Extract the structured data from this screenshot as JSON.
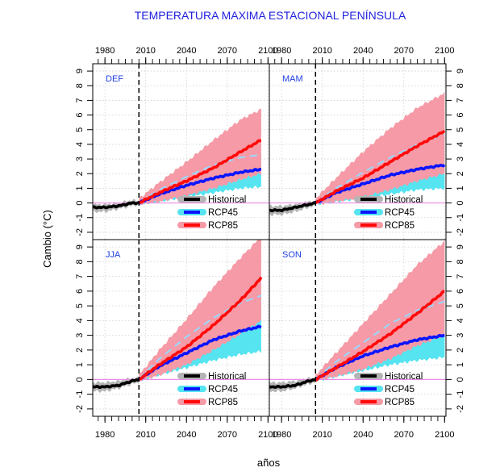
{
  "chart_data": {
    "type": "line",
    "title": "TEMPERATURA MAXIMA ESTACIONAL PENÍNSULA",
    "xlabel": "años",
    "ylabel": "Cambio (°C)",
    "x_ticks": [
      1980,
      2010,
      2040,
      2070,
      2100
    ],
    "y_ticks": [
      -2,
      -1,
      0,
      1,
      2,
      3,
      4,
      5,
      6,
      7,
      8,
      9
    ],
    "xlim": [
      1971,
      2101
    ],
    "ylim": [
      -2.5,
      9.5
    ],
    "reference_year": 2005,
    "reference_line": 0,
    "legend": [
      {
        "name": "Historical",
        "color": "#000000",
        "band_color": "#b4b4b4"
      },
      {
        "name": "RCP45",
        "color": "#0a14ff",
        "band_color": "#55e4f0"
      },
      {
        "name": "RCP85",
        "color": "#ff0a0a",
        "band_color": "#f59aa6"
      }
    ],
    "panels": [
      {
        "label": "DEF",
        "historical": {
          "x": [
            1971,
            1980,
            1990,
            2000,
            2005
          ],
          "y": [
            -0.3,
            -0.3,
            -0.2,
            0.0,
            0.0
          ],
          "low": [
            -0.6,
            -0.6,
            -0.4,
            -0.2,
            -0.1
          ],
          "high": [
            -0.1,
            -0.1,
            0.0,
            0.2,
            0.1
          ]
        },
        "rcp45": {
          "x": [
            2005,
            2020,
            2040,
            2060,
            2080,
            2095
          ],
          "y": [
            0.0,
            0.6,
            1.2,
            1.7,
            2.1,
            2.3
          ],
          "low": [
            -0.1,
            0.1,
            0.4,
            0.7,
            1.0,
            1.1
          ],
          "high": [
            0.2,
            1.0,
            1.9,
            2.6,
            3.1,
            3.3
          ],
          "dashed": [
            0.05,
            0.9,
            1.7,
            2.3,
            2.7,
            2.9
          ]
        },
        "rcp85": {
          "x": [
            2005,
            2020,
            2040,
            2060,
            2080,
            2095
          ],
          "y": [
            0.0,
            0.7,
            1.5,
            2.4,
            3.5,
            4.3
          ],
          "low": [
            -0.1,
            0.1,
            0.5,
            1.0,
            1.6,
            2.0
          ],
          "high": [
            0.3,
            1.4,
            2.8,
            4.3,
            5.7,
            6.4
          ],
          "dashed": [
            0.05,
            0.9,
            1.8,
            2.6,
            3.1,
            3.3
          ]
        }
      },
      {
        "label": "MAM",
        "historical": {
          "x": [
            1971,
            1980,
            1990,
            2000,
            2005
          ],
          "y": [
            -0.5,
            -0.5,
            -0.3,
            -0.1,
            0.0
          ],
          "low": [
            -0.8,
            -0.8,
            -0.6,
            -0.3,
            -0.2
          ],
          "high": [
            -0.2,
            -0.2,
            -0.1,
            0.1,
            0.1
          ]
        },
        "rcp45": {
          "x": [
            2005,
            2020,
            2040,
            2060,
            2080,
            2100
          ],
          "y": [
            0.0,
            0.7,
            1.3,
            1.9,
            2.3,
            2.6
          ],
          "low": [
            -0.1,
            0.1,
            0.3,
            0.6,
            0.9,
            1.0
          ],
          "high": [
            0.2,
            1.4,
            2.6,
            3.5,
            4.2,
            4.6
          ],
          "dashed": [
            0.05,
            1.0,
            2.0,
            2.9,
            3.7,
            4.2
          ]
        },
        "rcp85": {
          "x": [
            2005,
            2020,
            2040,
            2060,
            2080,
            2100
          ],
          "y": [
            0.0,
            0.8,
            1.7,
            2.8,
            3.9,
            4.9
          ],
          "low": [
            -0.1,
            0.1,
            0.4,
            0.9,
            1.5,
            2.0
          ],
          "high": [
            0.3,
            1.7,
            3.5,
            5.1,
            6.5,
            7.5
          ],
          "dashed": [
            0.05,
            1.0,
            2.1,
            3.1,
            4.0,
            4.7
          ]
        }
      },
      {
        "label": "JJA",
        "historical": {
          "x": [
            1971,
            1980,
            1990,
            2000,
            2005
          ],
          "y": [
            -0.5,
            -0.5,
            -0.4,
            -0.1,
            0.0
          ],
          "low": [
            -0.8,
            -0.8,
            -0.6,
            -0.3,
            -0.2
          ],
          "high": [
            -0.2,
            -0.2,
            -0.1,
            0.1,
            0.1
          ]
        },
        "rcp45": {
          "x": [
            2005,
            2020,
            2040,
            2060,
            2080,
            2095
          ],
          "y": [
            0.0,
            0.9,
            1.8,
            2.7,
            3.3,
            3.6
          ],
          "low": [
            -0.1,
            0.3,
            0.8,
            1.3,
            1.7,
            1.9
          ],
          "high": [
            0.2,
            1.7,
            3.3,
            4.6,
            5.4,
            5.7
          ],
          "dashed": [
            0.05,
            1.3,
            2.7,
            3.9,
            4.7,
            5.0
          ]
        },
        "rcp85": {
          "x": [
            2005,
            2020,
            2040,
            2060,
            2080,
            2095
          ],
          "y": [
            0.0,
            1.0,
            2.2,
            3.7,
            5.4,
            6.9
          ],
          "low": [
            -0.1,
            0.3,
            1.0,
            2.0,
            3.1,
            4.0
          ],
          "high": [
            0.3,
            2.0,
            4.1,
            6.3,
            8.3,
            9.7
          ],
          "dashed": [
            0.05,
            1.4,
            2.9,
            4.2,
            5.2,
            5.7
          ]
        }
      },
      {
        "label": "SON",
        "historical": {
          "x": [
            1971,
            1980,
            1990,
            2000,
            2005
          ],
          "y": [
            -0.5,
            -0.5,
            -0.4,
            -0.1,
            0.0
          ],
          "low": [
            -0.8,
            -0.8,
            -0.6,
            -0.3,
            -0.2
          ],
          "high": [
            -0.2,
            -0.2,
            -0.1,
            0.1,
            0.1
          ]
        },
        "rcp45": {
          "x": [
            2005,
            2020,
            2040,
            2060,
            2080,
            2100
          ],
          "y": [
            0.0,
            0.8,
            1.6,
            2.2,
            2.7,
            3.0
          ],
          "low": [
            -0.1,
            0.2,
            0.6,
            1.0,
            1.3,
            1.5
          ],
          "high": [
            0.2,
            1.5,
            2.8,
            3.7,
            4.3,
            4.5
          ],
          "dashed": [
            0.05,
            1.1,
            2.3,
            3.3,
            4.0,
            4.4
          ]
        },
        "rcp85": {
          "x": [
            2005,
            2020,
            2040,
            2060,
            2080,
            2100
          ],
          "y": [
            0.0,
            0.8,
            1.9,
            3.1,
            4.5,
            6.0
          ],
          "low": [
            -0.1,
            0.2,
            0.7,
            1.4,
            2.3,
            3.0
          ],
          "high": [
            0.3,
            1.8,
            3.8,
            5.8,
            7.8,
            9.4
          ],
          "dashed": [
            0.05,
            1.2,
            2.5,
            3.8,
            4.7,
            5.3
          ]
        }
      }
    ]
  }
}
